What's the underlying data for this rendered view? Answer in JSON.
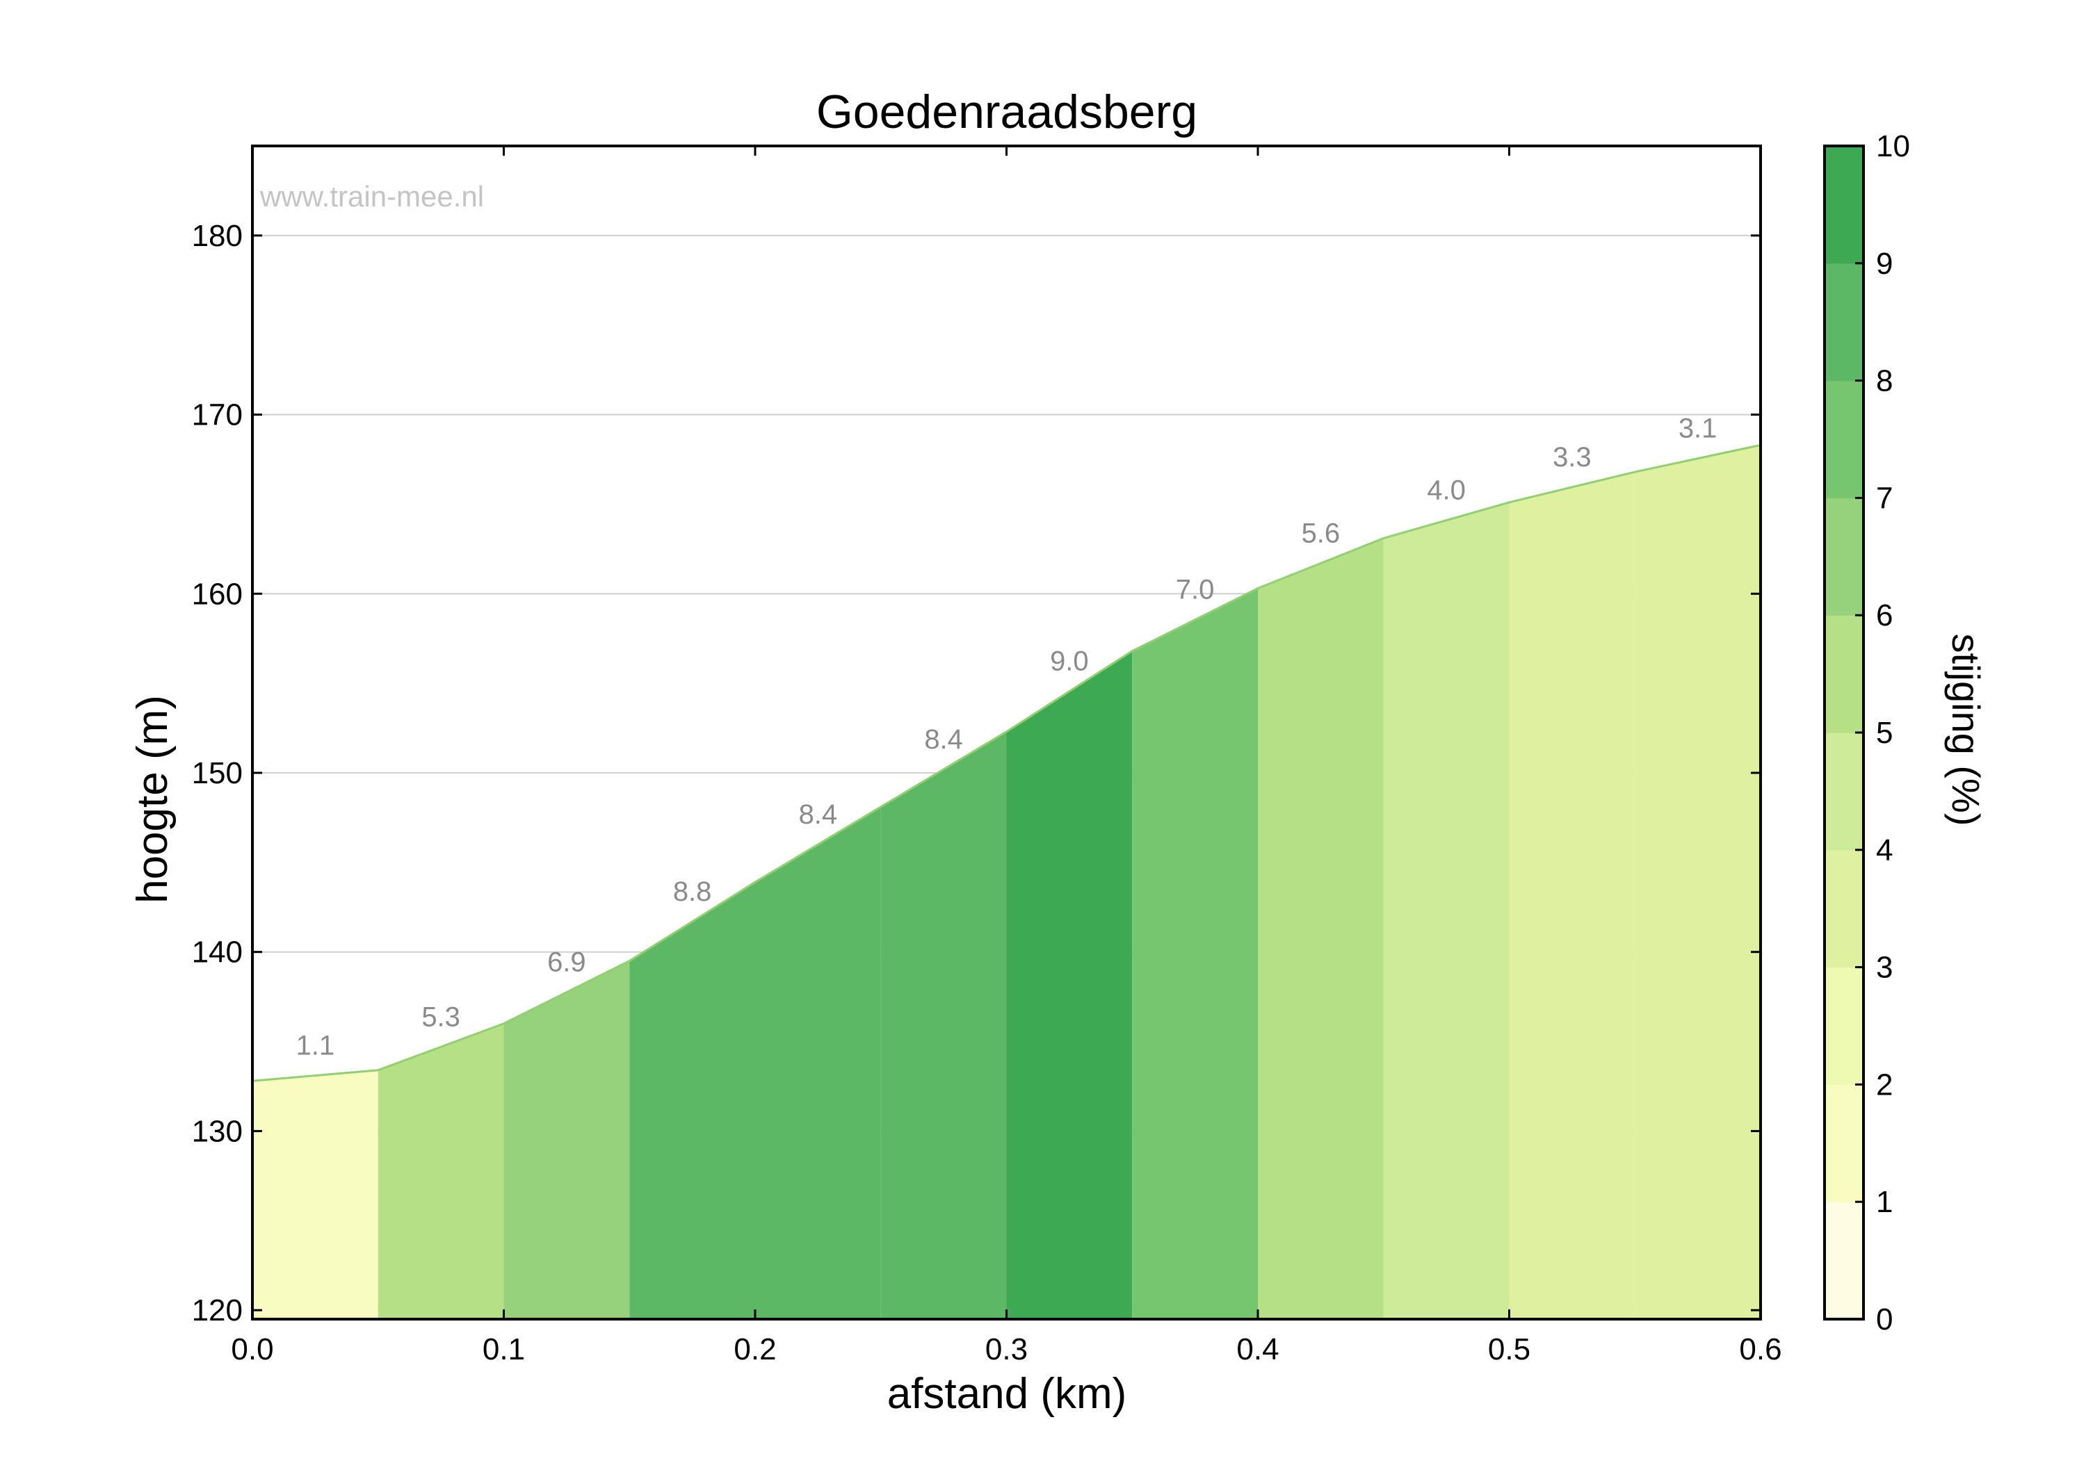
{
  "chart_data": {
    "type": "area",
    "title": "Goedenraadsberg",
    "xlabel": "afstand (km)",
    "ylabel": "hoogte (m)",
    "colorbar_label": "stijging (%)",
    "watermark": "www.train-mee.nl",
    "xlim": [
      0.0,
      0.6
    ],
    "ylim": [
      119.5,
      185
    ],
    "xticks": [
      "0.0",
      "0.1",
      "0.2",
      "0.3",
      "0.4",
      "0.5",
      "0.6"
    ],
    "yticks": [
      "120",
      "130",
      "140",
      "150",
      "160",
      "170",
      "180"
    ],
    "colorbar_ticks": [
      "0",
      "1",
      "2",
      "3",
      "4",
      "5",
      "6",
      "7",
      "8",
      "9",
      "10"
    ],
    "grid": true,
    "profile": {
      "x": [
        0.0,
        0.05,
        0.1,
        0.15,
        0.2,
        0.25,
        0.3,
        0.35,
        0.4,
        0.45,
        0.5,
        0.55,
        0.6
      ],
      "y": [
        132.8,
        133.4,
        136.0,
        139.5,
        143.9,
        148.1,
        152.3,
        156.8,
        160.3,
        163.1,
        165.1,
        166.8,
        168.3
      ]
    },
    "segments": [
      {
        "x0": 0.0,
        "x1": 0.05,
        "gradient": 1.1,
        "label": "1.1"
      },
      {
        "x0": 0.05,
        "x1": 0.1,
        "gradient": 5.3,
        "label": "5.3"
      },
      {
        "x0": 0.1,
        "x1": 0.15,
        "gradient": 6.9,
        "label": "6.9"
      },
      {
        "x0": 0.15,
        "x1": 0.2,
        "gradient": 8.8,
        "label": "8.8"
      },
      {
        "x0": 0.2,
        "x1": 0.25,
        "gradient": 8.4,
        "label": "8.4"
      },
      {
        "x0": 0.25,
        "x1": 0.3,
        "gradient": 8.4,
        "label": "8.4"
      },
      {
        "x0": 0.3,
        "x1": 0.35,
        "gradient": 9.0,
        "label": "9.0"
      },
      {
        "x0": 0.35,
        "x1": 0.4,
        "gradient": 7.0,
        "label": "7.0"
      },
      {
        "x0": 0.4,
        "x1": 0.45,
        "gradient": 5.6,
        "label": "5.6"
      },
      {
        "x0": 0.45,
        "x1": 0.5,
        "gradient": 4.0,
        "label": "4.0"
      },
      {
        "x0": 0.5,
        "x1": 0.55,
        "gradient": 3.3,
        "label": "3.3"
      },
      {
        "x0": 0.55,
        "x1": 0.6,
        "gradient": 3.1,
        "label": "3.1"
      }
    ],
    "colorbar_colors": [
      "#fefce2",
      "#f8fcc0",
      "#eef9b2",
      "#dff0a0",
      "#cdeb99",
      "#b6e086",
      "#96d27b",
      "#76c670",
      "#5cb864",
      "#3ea953"
    ],
    "colors": {
      "line": "#8fd06f",
      "grid": "#cfcfcf",
      "segment_label": "#8a8a8a",
      "watermark": "#c4c4c4"
    }
  }
}
